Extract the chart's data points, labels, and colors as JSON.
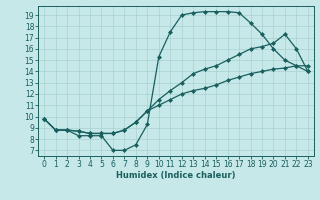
{
  "title": "",
  "xlabel": "Humidex (Indice chaleur)",
  "bg_color": "#c6e8e8",
  "line_color": "#1a5f5f",
  "grid_color": "#a8d0d0",
  "marker": "D",
  "markersize": 2.0,
  "linewidth": 0.9,
  "xlim": [
    -0.5,
    23.5
  ],
  "ylim": [
    6.5,
    19.8
  ],
  "xticks": [
    0,
    1,
    2,
    3,
    4,
    5,
    6,
    7,
    8,
    9,
    10,
    11,
    12,
    13,
    14,
    15,
    16,
    17,
    18,
    19,
    20,
    21,
    22,
    23
  ],
  "yticks": [
    7,
    8,
    9,
    10,
    11,
    12,
    13,
    14,
    15,
    16,
    17,
    18,
    19
  ],
  "line1_x": [
    0,
    1,
    2,
    3,
    4,
    5,
    6,
    7,
    8,
    9,
    10,
    11,
    12,
    13,
    14,
    15,
    16,
    17,
    18,
    19,
    20,
    21,
    22,
    23
  ],
  "line1_y": [
    9.8,
    8.8,
    8.8,
    8.3,
    8.3,
    8.3,
    7.0,
    7.0,
    7.5,
    9.3,
    15.3,
    17.5,
    19.0,
    19.2,
    19.3,
    19.3,
    19.3,
    19.2,
    18.3,
    17.3,
    16.0,
    15.0,
    14.5,
    14.0
  ],
  "line2_x": [
    0,
    1,
    2,
    3,
    4,
    5,
    6,
    7,
    8,
    9,
    10,
    11,
    12,
    13,
    14,
    15,
    16,
    17,
    18,
    19,
    20,
    21,
    22,
    23
  ],
  "line2_y": [
    9.8,
    8.8,
    8.8,
    8.7,
    8.5,
    8.5,
    8.5,
    8.8,
    9.5,
    10.5,
    11.5,
    12.3,
    13.0,
    13.8,
    14.2,
    14.5,
    15.0,
    15.5,
    16.0,
    16.2,
    16.5,
    17.3,
    16.0,
    14.0
  ],
  "line3_x": [
    0,
    1,
    2,
    3,
    4,
    5,
    6,
    7,
    8,
    9,
    10,
    11,
    12,
    13,
    14,
    15,
    16,
    17,
    18,
    19,
    20,
    21,
    22,
    23
  ],
  "line3_y": [
    9.8,
    8.8,
    8.8,
    8.7,
    8.5,
    8.5,
    8.5,
    8.8,
    9.5,
    10.5,
    11.0,
    11.5,
    12.0,
    12.3,
    12.5,
    12.8,
    13.2,
    13.5,
    13.8,
    14.0,
    14.2,
    14.3,
    14.5,
    14.5
  ],
  "tick_fontsize": 5.5,
  "xlabel_fontsize": 6.0
}
